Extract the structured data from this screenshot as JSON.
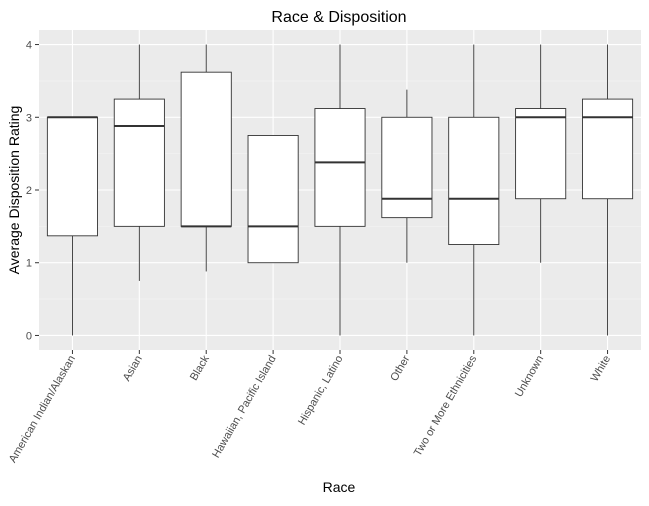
{
  "chart_data": {
    "type": "boxplot",
    "title": "Race & Disposition",
    "xlabel": "Race",
    "ylabel": "Average Disposition Rating",
    "ylim": [
      -0.2,
      4.2
    ],
    "yticks": [
      0,
      1,
      2,
      3,
      4
    ],
    "grid": true,
    "legend": "none",
    "categories": [
      "American Indian/Alaskan",
      "Asian",
      "Black",
      "Hawaiian, Pacific Island",
      "Hispanic, Latino",
      "Other",
      "Two or More Ethnicities",
      "Unknown",
      "White"
    ],
    "boxes": [
      {
        "min": 0,
        "q1": 1.37,
        "median": 3.0,
        "q3": 3.0,
        "max": 3.0
      },
      {
        "min": 0.75,
        "q1": 1.5,
        "median": 2.88,
        "q3": 3.25,
        "max": 4.0
      },
      {
        "min": 0.88,
        "q1": 1.5,
        "median": 1.5,
        "q3": 3.62,
        "max": 4.0
      },
      {
        "min": 1.0,
        "q1": 1.0,
        "median": 1.5,
        "q3": 2.75,
        "max": 2.75
      },
      {
        "min": 0,
        "q1": 1.5,
        "median": 2.38,
        "q3": 3.12,
        "max": 4.0
      },
      {
        "min": 1.0,
        "q1": 1.62,
        "median": 1.88,
        "q3": 3.0,
        "max": 3.38
      },
      {
        "min": 0,
        "q1": 1.25,
        "median": 1.88,
        "q3": 3.0,
        "max": 4.0
      },
      {
        "min": 1.0,
        "q1": 1.88,
        "median": 3.0,
        "q3": 3.12,
        "max": 4.0
      },
      {
        "min": 0,
        "q1": 1.88,
        "median": 3.0,
        "q3": 3.25,
        "max": 4.0
      }
    ],
    "colors": {
      "panel_background": "#ebebeb",
      "grid_major": "#ffffff",
      "grid_minor": "#f5f5f5",
      "box_fill": "#ffffff",
      "box_stroke": "#333333",
      "tick_text": "#4d4d4d",
      "title_text": "#000000"
    }
  }
}
